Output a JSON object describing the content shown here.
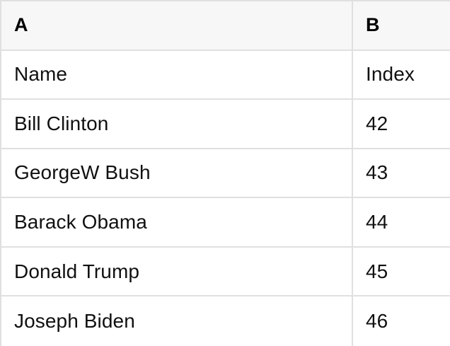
{
  "colors": {
    "header_bg": "#f7f7f7",
    "border": "#e0e0e0",
    "text": "#111111",
    "row_bg": "#ffffff"
  },
  "table": {
    "column_headers": [
      "A",
      "B"
    ],
    "field_names": [
      "Name",
      "Index"
    ],
    "rows": [
      [
        "Name",
        "Index"
      ],
      [
        "Bill Clinton",
        "42"
      ],
      [
        "GeorgeW Bush",
        "43"
      ],
      [
        "Barack Obama",
        "44"
      ],
      [
        "Donald Trump",
        "45"
      ],
      [
        "Joseph Biden",
        "46"
      ]
    ]
  }
}
